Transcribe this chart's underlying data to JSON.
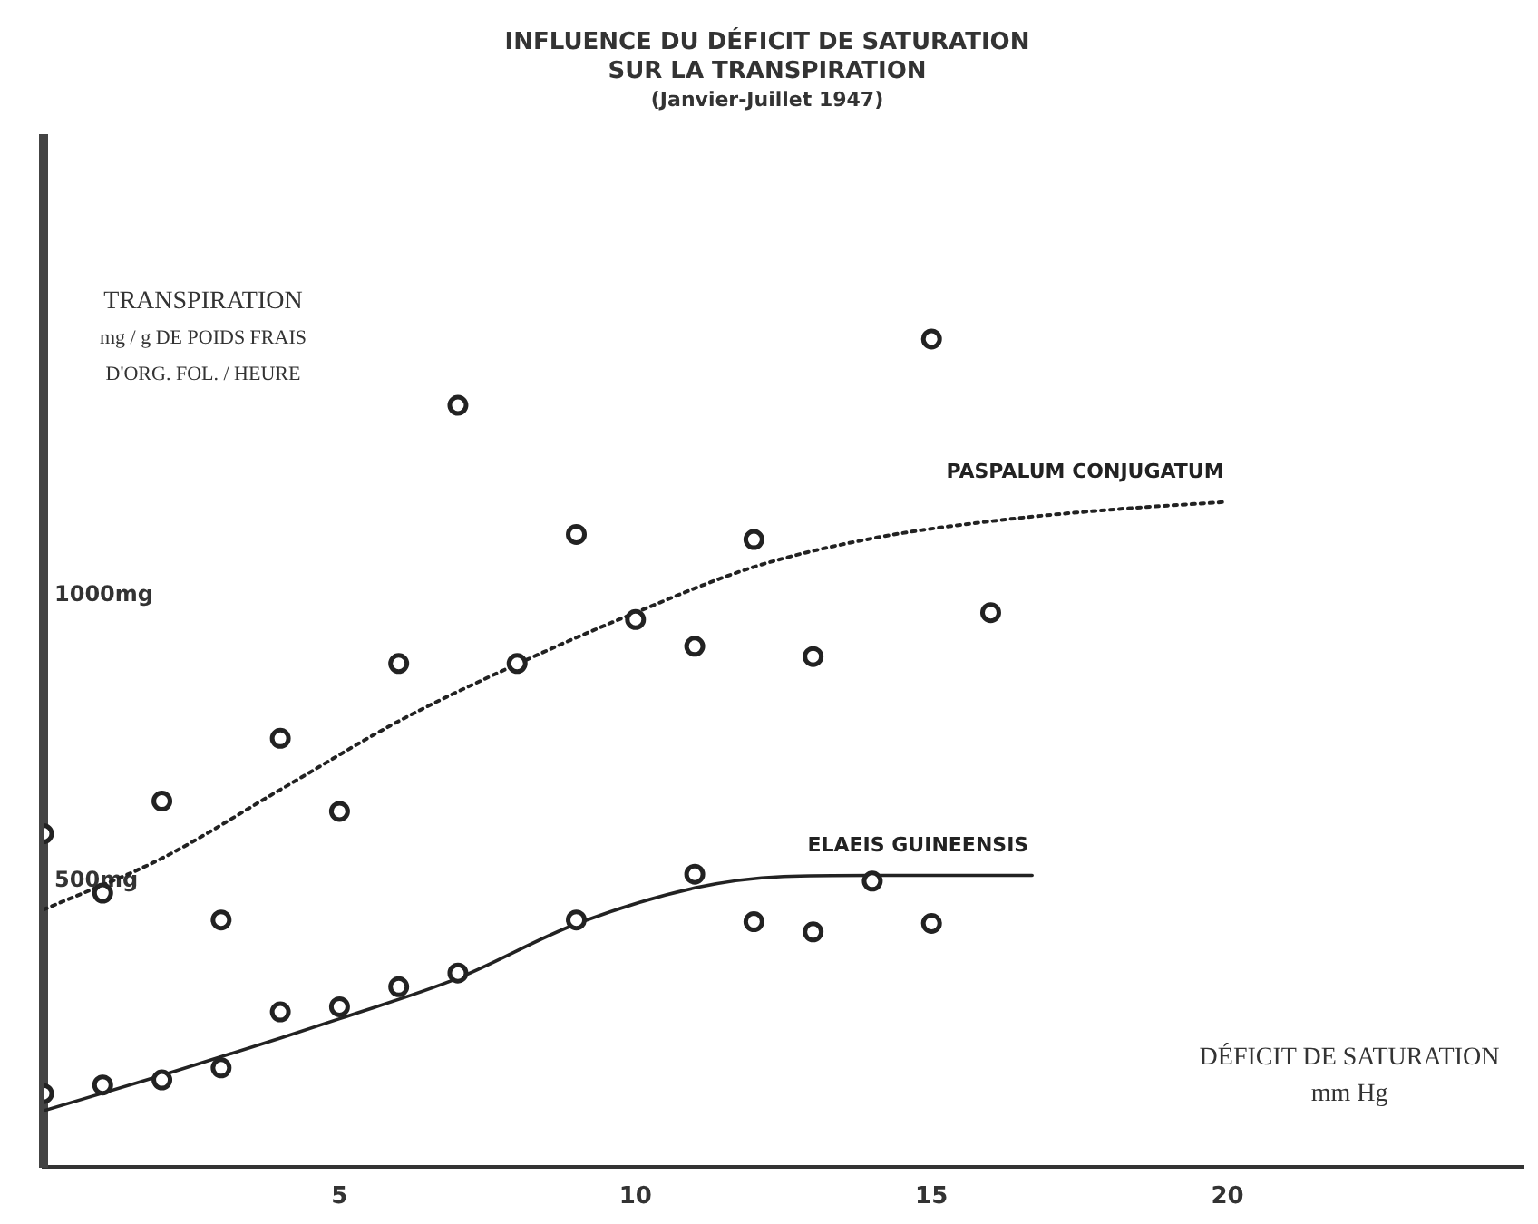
{
  "chart_data": {
    "type": "scatter",
    "title": "INFLUENCE DU DÉFICIT DE SATURATION\nSUR LA TRANSPIRATION",
    "subtitle": "(Janvier-Juillet 1947)",
    "xlabel": "DÉFICIT DE SATURATION\nmm Hg",
    "ylabel": "TRANSPIRATION\nmg / g DE POIDS FRAIS\nD'ORG. FOL. / HEURE",
    "xlim": [
      0,
      25
    ],
    "xticks": [
      5,
      10,
      15,
      20
    ],
    "ylim": [
      0,
      1800
    ],
    "yticks": [
      {
        "value": 500,
        "label": "500mg"
      },
      {
        "value": 1000,
        "label": "1000mg"
      }
    ],
    "grid": false,
    "legend": false,
    "marker": "circle",
    "series": [
      {
        "type": "scatter",
        "color": "#222222",
        "x": [
          0,
          1,
          2,
          3,
          4,
          5,
          6,
          7,
          8,
          9,
          10,
          11,
          12,
          13,
          15,
          16
        ],
        "values": [
          583,
          479,
          640,
          432,
          750,
          622,
          881,
          1333,
          881,
          1107,
          958,
          911,
          1098,
          893,
          1449,
          970
        ]
      },
      {
        "type": "scatter",
        "color": "#222222",
        "x": [
          0,
          1,
          2,
          3,
          4,
          5,
          6,
          7,
          9,
          11,
          12,
          13,
          14,
          15
        ],
        "values": [
          128,
          143,
          152,
          173,
          271,
          280,
          315,
          339,
          432,
          512,
          429,
          411,
          500,
          426
        ]
      },
      {
        "type": "line",
        "name": "PASPALUM CONJUGATUM",
        "color": "#222222",
        "line_style": "dotted",
        "marker": "none",
        "x": [
          0,
          2,
          4,
          6,
          8,
          10,
          12,
          14,
          16,
          18,
          20
        ],
        "values": [
          450,
          540,
          660,
          780,
          880,
          970,
          1050,
          1100,
          1130,
          1150,
          1164
        ]
      },
      {
        "type": "line",
        "name": "ELAEIS GUINEENSIS",
        "color": "#222222",
        "line_style": "solid",
        "marker": "none",
        "x": [
          0,
          2,
          4,
          5,
          7,
          9,
          11,
          12.5,
          14,
          16.7
        ],
        "values": [
          98,
          160,
          225,
          259,
          330,
          425,
          488,
          508,
          510,
          510
        ]
      }
    ]
  }
}
